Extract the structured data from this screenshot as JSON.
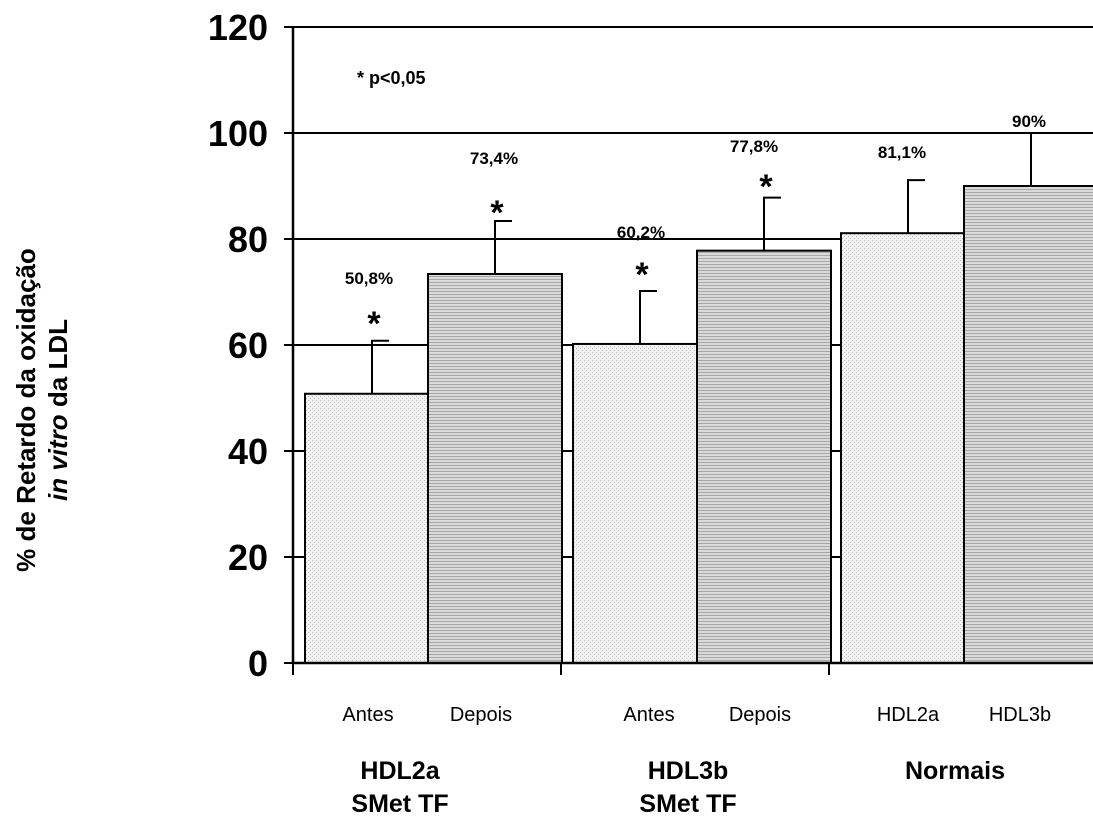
{
  "chart_data": {
    "type": "bar",
    "ylabel_line1": "% de Retardo da oxidação",
    "ylabel_line2_italic": "in vitro",
    "ylabel_line2_rest": " da LDL",
    "ylim": [
      0,
      120
    ],
    "yticks": [
      "0",
      "20",
      "40",
      "60",
      "80",
      "100",
      "120"
    ],
    "grid": true,
    "significance_note": "* p<0,05",
    "categories": [
      "Antes",
      "Depois",
      "Antes",
      "Depois",
      "HDL2a",
      "HDL3b"
    ],
    "values": [
      50.8,
      73.4,
      60.2,
      77.8,
      81.1,
      90
    ],
    "errors": [
      10,
      10,
      10,
      10,
      10,
      10
    ],
    "data_labels": [
      "50,8%",
      "73,4%",
      "60,2%",
      "77,8%",
      "81,1%",
      "90%"
    ],
    "significant": [
      true,
      true,
      true,
      true,
      false,
      false
    ],
    "groups": [
      {
        "line1": "HDL2a",
        "line2": "SMet TF"
      },
      {
        "line1": "HDL3b",
        "line2": "SMet TF"
      },
      {
        "line1": "Normais",
        "line2": ""
      }
    ],
    "colors": {
      "bar_light": "#ececec",
      "bar_dark": "#d2d2d2",
      "axis": "#000000"
    }
  }
}
